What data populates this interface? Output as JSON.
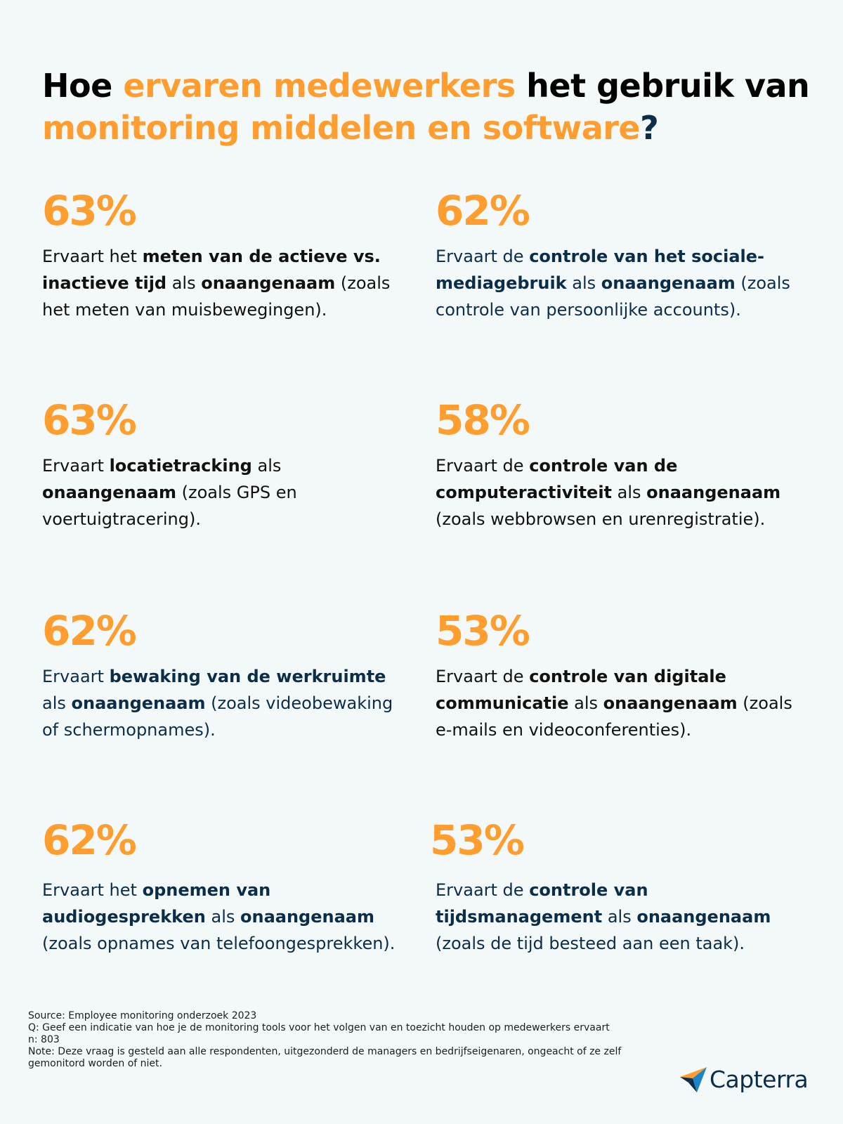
{
  "title": {
    "part1": "Hoe ",
    "part2": "ervaren medewerkers",
    "part3": " het gebruik van ",
    "part4": "monitoring middelen en software",
    "part5": "?"
  },
  "stats": [
    {
      "percent": "63%",
      "t1": "Ervaart het ",
      "b1": "meten van de actieve vs. inactieve tijd",
      "t2": " als ",
      "b2": "onaangenaam",
      "t3": " (zoals het meten van muisbewegingen)."
    },
    {
      "percent": "62%",
      "t1": "Ervaart de ",
      "b1": "controle van het sociale-mediagebruik",
      "t2": " als ",
      "b2": "onaangenaam",
      "t3": " (zoals controle van persoonlijke accounts)."
    },
    {
      "percent": "63%",
      "t1": "Ervaart ",
      "b1": "locatietracking",
      "t2": " als ",
      "b2": "onaangenaam",
      "t3": " (zoals GPS en voertuigtracering)."
    },
    {
      "percent": "58%",
      "t1": "Ervaart de ",
      "b1": "controle van de computeractiviteit",
      "t2": " als ",
      "b2": "onaangenaam",
      "t3": " (zoals webbrowsen en urenregistratie)."
    },
    {
      "percent": "62%",
      "t1": "Ervaart ",
      "b1": "bewaking van de werkruimte",
      "t2": " als ",
      "b2": "onaangenaam",
      "t3": " (zoals videobewaking of schermopnames)."
    },
    {
      "percent": "53%",
      "t1": "Ervaart de ",
      "b1": "controle van digitale communicatie",
      "t2": " als ",
      "b2": "onaangenaam",
      "t3": " (zoals e-mails en videoconferenties)."
    },
    {
      "percent": "62%",
      "t1": "Ervaart het ",
      "b1": "opnemen van audiogesprekken",
      "t2": " als ",
      "b2": "onaangenaam",
      "t3": " (zoals opnames van telefoongesprekken)."
    },
    {
      "percent": "53%",
      "t1": "Ervaart de ",
      "b1": "controle van tijdsmanagement",
      "t2": " als ",
      "b2": "onaangenaam",
      "t3": " (zoals de tijd besteed aan een taak)."
    }
  ],
  "footer": {
    "source": "Source: Employee monitoring onderzoek 2023",
    "question": "Q: Geef een indicatie van hoe je de monitoring tools voor het volgen van en toezicht houden op medewerkers ervaart",
    "n": "n: 803",
    "note": "Note: Deze vraag is gesteld aan alle respondenten, uitgezonderd de managers en bedrijfseigenaren, ongeacht of ze zelf gemonitord worden of niet."
  },
  "logo": {
    "text": "Capterra",
    "icon": "capterra-arrow-icon"
  },
  "colors": {
    "accent": "#ff9d2e",
    "navy": "#0c2d48",
    "background": "#f3f8f8"
  }
}
